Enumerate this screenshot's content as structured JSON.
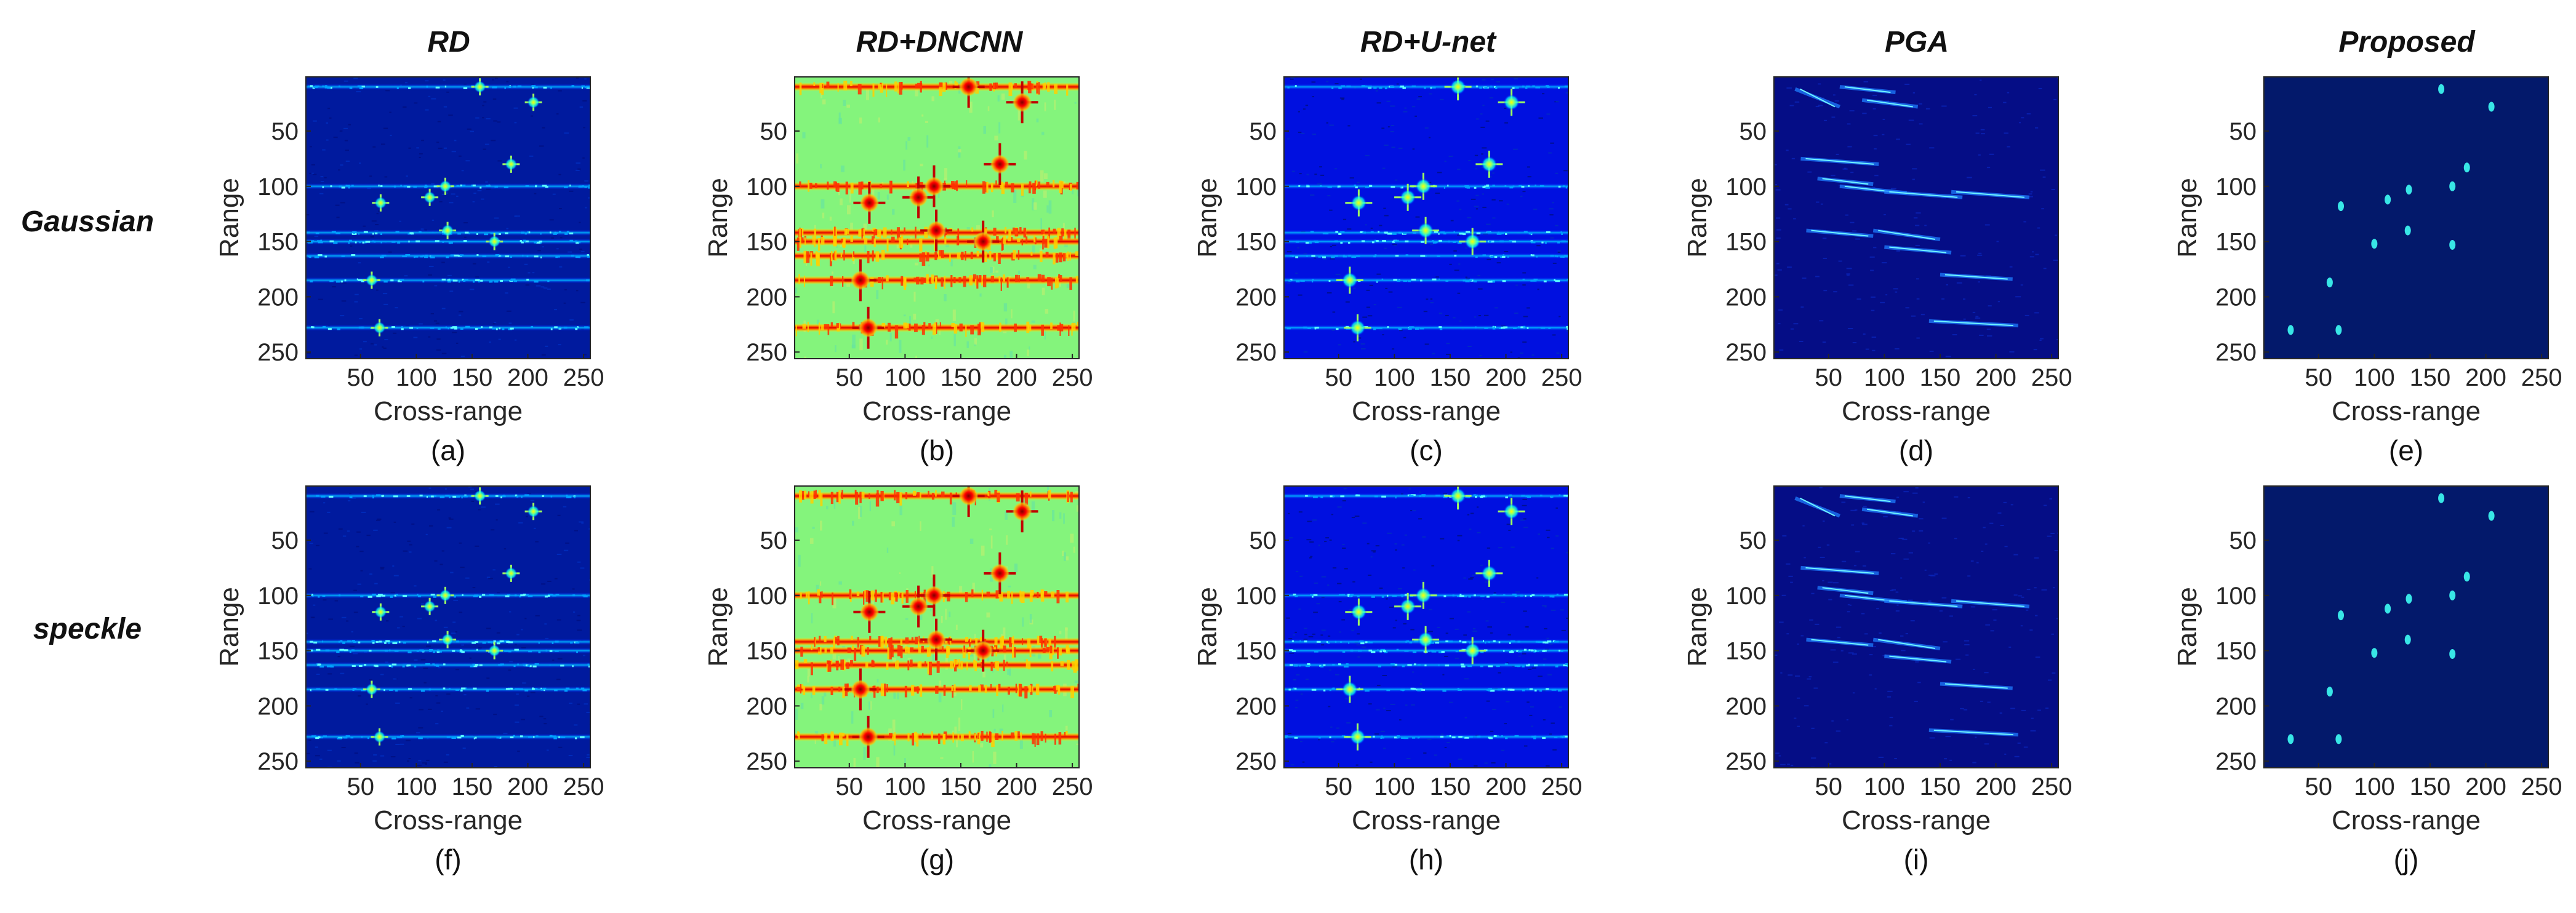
{
  "figure": {
    "column_titles": [
      "RD",
      "RD+DNCNN",
      "RD+U-net",
      "PGA",
      "Proposed"
    ],
    "row_labels": [
      "Gaussian",
      "speckle"
    ],
    "panel_labels": [
      "(a)",
      "(b)",
      "(c)",
      "(d)",
      "(e)",
      "(f)",
      "(g)",
      "(h)",
      "(i)",
      "(j)"
    ],
    "colors": {
      "jet_dark_blue": "#00008f",
      "jet_blue": "#0000ff",
      "jet_cyan": "#00ffff",
      "jet_green": "#7fff7f",
      "jet_yellow": "#ffff00",
      "jet_red": "#ff0000",
      "jet_dark_red": "#800000",
      "proposed_bg": "#03196b",
      "proposed_spot": "#38e6e6"
    }
  },
  "chart_data": [
    {
      "panel": "(a)",
      "method": "RD",
      "noise": "Gaussian",
      "type": "heatmap",
      "style": "rd",
      "xlabel": "Cross-range",
      "ylabel": "Range",
      "xlim": [
        1,
        256
      ],
      "ylim": [
        1,
        256
      ],
      "xticks": [
        50,
        100,
        150,
        200,
        250
      ],
      "yticks": [
        50,
        100,
        150,
        200,
        250
      ],
      "stripes": [
        10,
        100,
        142,
        150,
        163,
        185,
        228
      ],
      "targets": [
        [
          157,
          10
        ],
        [
          205,
          24
        ],
        [
          185,
          80
        ],
        [
          126,
          100
        ],
        [
          68,
          115
        ],
        [
          112,
          110
        ],
        [
          170,
          150
        ],
        [
          128,
          140
        ],
        [
          60,
          185
        ],
        [
          67,
          228
        ]
      ]
    },
    {
      "panel": "(b)",
      "method": "RD+DNCNN",
      "noise": "Gaussian",
      "type": "heatmap",
      "style": "dncnn",
      "xlabel": "Cross-range",
      "ylabel": "Range",
      "xlim": [
        1,
        256
      ],
      "ylim": [
        1,
        256
      ],
      "xticks": [
        50,
        100,
        150,
        200,
        250
      ],
      "yticks": [
        50,
        100,
        150,
        200,
        250
      ],
      "stripes": [
        10,
        100,
        142,
        150,
        163,
        185,
        228
      ],
      "targets": [
        [
          157,
          10
        ],
        [
          205,
          24
        ],
        [
          185,
          80
        ],
        [
          126,
          100
        ],
        [
          68,
          115
        ],
        [
          112,
          110
        ],
        [
          170,
          150
        ],
        [
          128,
          140
        ],
        [
          60,
          185
        ],
        [
          67,
          228
        ]
      ]
    },
    {
      "panel": "(c)",
      "method": "RD+U-net",
      "noise": "Gaussian",
      "type": "heatmap",
      "style": "unet",
      "xlabel": "Cross-range",
      "ylabel": "Range",
      "xlim": [
        1,
        256
      ],
      "ylim": [
        1,
        256
      ],
      "xticks": [
        50,
        100,
        150,
        200,
        250
      ],
      "yticks": [
        50,
        100,
        150,
        200,
        250
      ],
      "stripes": [
        10,
        100,
        142,
        150,
        163,
        185,
        228
      ],
      "targets": [
        [
          157,
          10
        ],
        [
          205,
          24
        ],
        [
          185,
          80
        ],
        [
          126,
          100
        ],
        [
          68,
          115
        ],
        [
          112,
          110
        ],
        [
          170,
          150
        ],
        [
          128,
          140
        ],
        [
          60,
          185
        ],
        [
          67,
          228
        ]
      ]
    },
    {
      "panel": "(d)",
      "method": "PGA",
      "noise": "Gaussian",
      "type": "heatmap",
      "style": "pga",
      "xlabel": "Cross-range",
      "ylabel": "Range",
      "xlim": [
        1,
        256
      ],
      "ylim": [
        1,
        256
      ],
      "xticks": [
        50,
        100,
        150,
        200,
        250
      ],
      "yticks": [
        50,
        100,
        150,
        200,
        250
      ],
      "streaks": [
        [
          20,
          12,
          60,
          28
        ],
        [
          60,
          10,
          110,
          15
        ],
        [
          80,
          22,
          130,
          28
        ],
        [
          25,
          75,
          95,
          80
        ],
        [
          40,
          93,
          90,
          98
        ],
        [
          60,
          100,
          120,
          106
        ],
        [
          100,
          105,
          170,
          110
        ],
        [
          160,
          105,
          230,
          110
        ],
        [
          30,
          140,
          90,
          145
        ],
        [
          90,
          140,
          150,
          148
        ],
        [
          100,
          155,
          160,
          160
        ],
        [
          150,
          180,
          215,
          184
        ],
        [
          140,
          222,
          220,
          226
        ]
      ]
    },
    {
      "panel": "(e)",
      "method": "Proposed",
      "noise": "Gaussian",
      "type": "heatmap",
      "style": "proposed",
      "xlabel": "Cross-range",
      "ylabel": "Range",
      "xlim": [
        1,
        256
      ],
      "ylim": [
        1,
        256
      ],
      "xticks": [
        50,
        100,
        150,
        200,
        250
      ],
      "yticks": [
        50,
        100,
        150,
        200,
        250
      ],
      "spots": [
        [
          160,
          12
        ],
        [
          205,
          28
        ],
        [
          183,
          83
        ],
        [
          170,
          100
        ],
        [
          131,
          103
        ],
        [
          112,
          112
        ],
        [
          70,
          118
        ],
        [
          130,
          140
        ],
        [
          170,
          153
        ],
        [
          60,
          187
        ],
        [
          68,
          230
        ],
        [
          25,
          230
        ],
        [
          100,
          152
        ]
      ]
    },
    {
      "panel": "(f)",
      "method": "RD",
      "noise": "speckle",
      "type": "heatmap",
      "style": "rd",
      "xlabel": "Cross-range",
      "ylabel": "Range",
      "xlim": [
        1,
        256
      ],
      "ylim": [
        1,
        256
      ],
      "xticks": [
        50,
        100,
        150,
        200,
        250
      ],
      "yticks": [
        50,
        100,
        150,
        200,
        250
      ],
      "stripes": [
        10,
        100,
        142,
        150,
        163,
        185,
        228
      ],
      "targets": [
        [
          157,
          10
        ],
        [
          205,
          24
        ],
        [
          185,
          80
        ],
        [
          126,
          100
        ],
        [
          68,
          115
        ],
        [
          112,
          110
        ],
        [
          170,
          150
        ],
        [
          128,
          140
        ],
        [
          60,
          185
        ],
        [
          67,
          228
        ]
      ]
    },
    {
      "panel": "(g)",
      "method": "RD+DNCNN",
      "noise": "speckle",
      "type": "heatmap",
      "style": "dncnn",
      "xlabel": "Cross-range",
      "ylabel": "Range",
      "xlim": [
        1,
        256
      ],
      "ylim": [
        1,
        256
      ],
      "xticks": [
        50,
        100,
        150,
        200,
        250
      ],
      "yticks": [
        50,
        100,
        150,
        200,
        250
      ],
      "stripes": [
        10,
        100,
        142,
        150,
        163,
        185,
        228
      ],
      "targets": [
        [
          157,
          10
        ],
        [
          205,
          24
        ],
        [
          185,
          80
        ],
        [
          126,
          100
        ],
        [
          68,
          115
        ],
        [
          112,
          110
        ],
        [
          170,
          150
        ],
        [
          128,
          140
        ],
        [
          60,
          185
        ],
        [
          67,
          228
        ]
      ]
    },
    {
      "panel": "(h)",
      "method": "RD+U-net",
      "noise": "speckle",
      "type": "heatmap",
      "style": "unet",
      "xlabel": "Cross-range",
      "ylabel": "Range",
      "xlim": [
        1,
        256
      ],
      "ylim": [
        1,
        256
      ],
      "xticks": [
        50,
        100,
        150,
        200,
        250
      ],
      "yticks": [
        50,
        100,
        150,
        200,
        250
      ],
      "stripes": [
        10,
        100,
        142,
        150,
        163,
        185,
        228
      ],
      "targets": [
        [
          157,
          10
        ],
        [
          205,
          24
        ],
        [
          185,
          80
        ],
        [
          126,
          100
        ],
        [
          68,
          115
        ],
        [
          112,
          110
        ],
        [
          170,
          150
        ],
        [
          128,
          140
        ],
        [
          60,
          185
        ],
        [
          67,
          228
        ]
      ]
    },
    {
      "panel": "(i)",
      "method": "PGA",
      "noise": "speckle",
      "type": "heatmap",
      "style": "pga",
      "xlabel": "Cross-range",
      "ylabel": "Range",
      "xlim": [
        1,
        256
      ],
      "ylim": [
        1,
        256
      ],
      "xticks": [
        50,
        100,
        150,
        200,
        250
      ],
      "yticks": [
        50,
        100,
        150,
        200,
        250
      ],
      "streaks": [
        [
          20,
          12,
          60,
          28
        ],
        [
          60,
          10,
          110,
          15
        ],
        [
          80,
          22,
          130,
          28
        ],
        [
          25,
          75,
          95,
          80
        ],
        [
          40,
          93,
          90,
          98
        ],
        [
          60,
          100,
          120,
          106
        ],
        [
          100,
          105,
          170,
          110
        ],
        [
          160,
          105,
          230,
          110
        ],
        [
          30,
          140,
          90,
          145
        ],
        [
          90,
          140,
          150,
          148
        ],
        [
          100,
          155,
          160,
          160
        ],
        [
          150,
          180,
          215,
          184
        ],
        [
          140,
          222,
          220,
          226
        ]
      ]
    },
    {
      "panel": "(j)",
      "method": "Proposed",
      "noise": "speckle",
      "type": "heatmap",
      "style": "proposed",
      "xlabel": "Cross-range",
      "ylabel": "Range",
      "xlim": [
        1,
        256
      ],
      "ylim": [
        1,
        256
      ],
      "xticks": [
        50,
        100,
        150,
        200,
        250
      ],
      "yticks": [
        50,
        100,
        150,
        200,
        250
      ],
      "spots": [
        [
          160,
          12
        ],
        [
          205,
          28
        ],
        [
          183,
          83
        ],
        [
          170,
          100
        ],
        [
          131,
          103
        ],
        [
          112,
          112
        ],
        [
          70,
          118
        ],
        [
          130,
          140
        ],
        [
          170,
          153
        ],
        [
          60,
          187
        ],
        [
          68,
          230
        ],
        [
          25,
          230
        ],
        [
          100,
          152
        ]
      ]
    }
  ]
}
